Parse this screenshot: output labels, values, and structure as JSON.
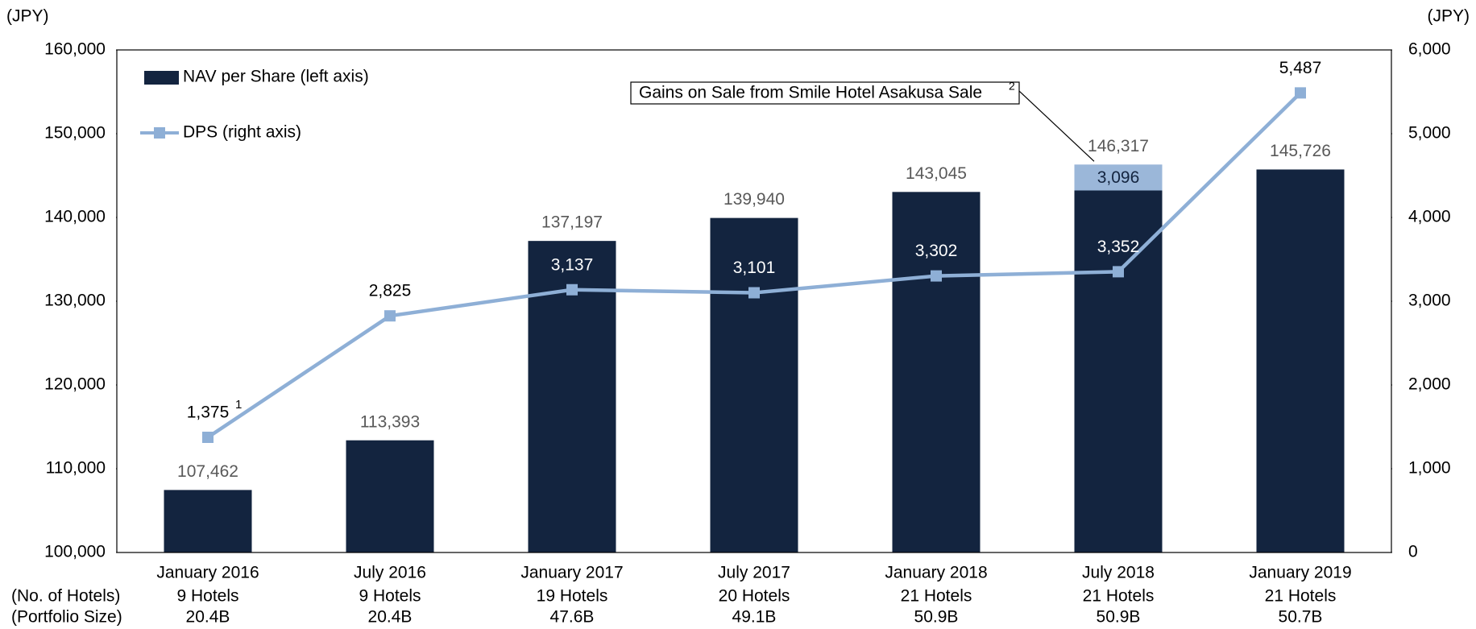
{
  "chart_data": {
    "type": "bar_line",
    "y_axis_label": "(JPY)",
    "y2_axis_label": "(JPY)",
    "categories": [
      "January 2016",
      "July 2016",
      "January 2017",
      "July 2017",
      "January 2018",
      "July 2018",
      "January 2019"
    ],
    "row_labels": [
      "(No. of Hotels)",
      "(Portfolio Size)"
    ],
    "hotels": [
      "9 Hotels",
      "9 Hotels",
      "19 Hotels",
      "20 Hotels",
      "21 Hotels",
      "21 Hotels",
      "21 Hotels"
    ],
    "portfolio_size": [
      "20.4B",
      "20.4B",
      "47.6B",
      "49.1B",
      "50.9B",
      "50.9B",
      "50.7B"
    ],
    "series": [
      {
        "name": "NAV per Share (left axis)",
        "color": "#13243f",
        "values": [
          107462,
          113393,
          137197,
          139940,
          143045,
          143221,
          145726
        ]
      },
      {
        "name": "Gains on Sale from Smile Hotel Asakusa Sale",
        "color": "#9bb7d9",
        "values": [
          null,
          null,
          null,
          null,
          null,
          3096,
          null
        ],
        "value_labels": [
          null,
          null,
          null,
          null,
          null,
          "3,096",
          null
        ],
        "footnote": "2"
      },
      {
        "name": "DPS (right axis)",
        "color": "#8eafd6",
        "axis": "y2",
        "values": [
          1375,
          2825,
          3137,
          3101,
          3302,
          3352,
          5487
        ],
        "value_labels": [
          "1,375",
          "2,825",
          "3,137",
          "3,101",
          "3,302",
          "3,352",
          "5,487"
        ],
        "footnote": "1"
      }
    ],
    "totals": [
      107462,
      113393,
      137197,
      139940,
      143045,
      146317,
      145726
    ],
    "totals_labels": [
      "107,462",
      "113,393",
      "137,197",
      "139,940",
      "143,045",
      "146,317",
      "145,726"
    ],
    "ylim": [
      100000,
      160000
    ],
    "yticks": [
      {
        "value": 100000,
        "label": "100,000"
      },
      {
        "value": 110000,
        "label": "110,000"
      },
      {
        "value": 120000,
        "label": "120,000"
      },
      {
        "value": 130000,
        "label": "130,000"
      },
      {
        "value": 140000,
        "label": "140,000"
      },
      {
        "value": 150000,
        "label": "150,000"
      },
      {
        "value": 160000,
        "label": "160,000"
      }
    ],
    "y2lim": [
      0,
      6000
    ],
    "y2ticks": [
      0,
      {
        "value": 1000,
        "label": "1,000"
      },
      {
        "value": 2000,
        "label": "2,000"
      },
      {
        "value": 3000,
        "label": "3,000"
      },
      {
        "value": 4000,
        "label": "4,000"
      },
      {
        "value": 5000,
        "label": "5,000"
      },
      {
        "value": 6000,
        "label": "6,000"
      }
    ],
    "grid": false
  }
}
